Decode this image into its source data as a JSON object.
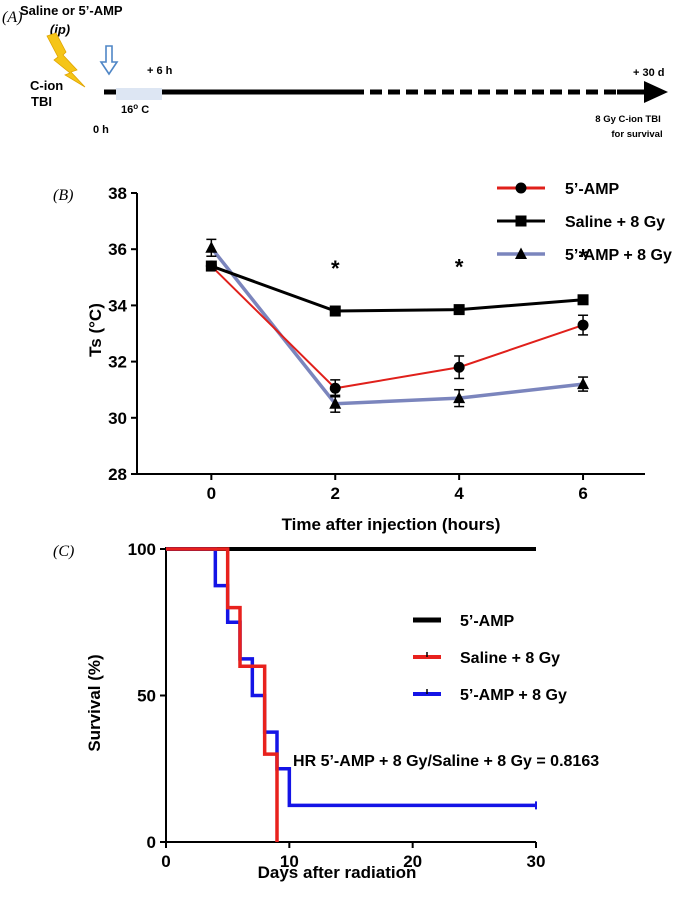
{
  "panel_a": {
    "panel_label": "(A)",
    "injection_label": "Saline or 5’-AMP",
    "injection_route": "(ip)",
    "irradiation_label_line1": "C-ion",
    "irradiation_label_line2": "TBI",
    "time_start": "0 h",
    "time_6h": "+ 6 h",
    "time_30d": "+ 30 d",
    "temperature_box": "16",
    "temperature_sup": "o",
    "temperature_unit": " C",
    "end_label_line1": "8 Gy C-ion TBI",
    "end_label_line2": "for survival",
    "colors": {
      "lightning": "#f5c518",
      "arrow_outline": "#4f86c6",
      "cold_box": "#dde6f3"
    }
  },
  "chart_data": [
    {
      "type": "line",
      "panel_label": "(B)",
      "xlabel": "Time after injection (hours)",
      "ylabel": "Ts (°C)",
      "xlim": [
        -1.2,
        7
      ],
      "ylim": [
        28,
        38
      ],
      "x_ticks": [
        0,
        2,
        4,
        6
      ],
      "y_ticks": [
        28,
        30,
        32,
        34,
        36,
        38
      ],
      "x": [
        0,
        2,
        4,
        6
      ],
      "series": [
        {
          "name": "5’-AMP",
          "marker": "circle",
          "color": "#e0201b",
          "values": [
            35.4,
            31.05,
            31.8,
            33.3
          ],
          "errors": [
            0.15,
            0.3,
            0.4,
            0.35
          ]
        },
        {
          "name": "Saline + 8 Gy",
          "marker": "square",
          "color": "#000000",
          "values": [
            35.4,
            33.8,
            33.85,
            34.2
          ],
          "errors": [
            0.1,
            0.12,
            0.12,
            0.12
          ]
        },
        {
          "name": "5’-AMP + 8 Gy",
          "marker": "triangle",
          "color": "#7b85bd",
          "values": [
            36.05,
            30.5,
            30.7,
            31.2
          ],
          "errors": [
            0.3,
            0.3,
            0.3,
            0.25
          ]
        }
      ],
      "annotations": [
        {
          "x": 2,
          "y": 35.05,
          "text": "*"
        },
        {
          "x": 4,
          "y": 35.1,
          "text": "*"
        },
        {
          "x": 6,
          "y": 35.45,
          "text": "*"
        }
      ],
      "legend_position": "top-right",
      "grid": false
    },
    {
      "type": "line",
      "panel_label": "(C)",
      "step": true,
      "xlabel": "Days after radiation",
      "ylabel": "Survival (%)",
      "xlim": [
        0,
        30
      ],
      "ylim": [
        0,
        100
      ],
      "x_ticks": [
        0,
        10,
        20,
        30
      ],
      "y_ticks": [
        0,
        50,
        100
      ],
      "series": [
        {
          "name": "5’-AMP",
          "color": "#000000",
          "points": [
            [
              0,
              100
            ],
            [
              30,
              100
            ]
          ]
        },
        {
          "name": "Saline + 8 Gy",
          "color": "#e8211d",
          "points": [
            [
              0,
              100
            ],
            [
              5,
              100
            ],
            [
              5,
              80
            ],
            [
              6,
              80
            ],
            [
              6,
              60
            ],
            [
              8,
              60
            ],
            [
              8,
              30
            ],
            [
              9,
              30
            ],
            [
              9,
              0
            ]
          ]
        },
        {
          "name": "5’-AMP + 8 Gy",
          "color": "#1414e6",
          "points": [
            [
              0,
              100
            ],
            [
              4,
              100
            ],
            [
              4,
              87.5
            ],
            [
              5,
              87.5
            ],
            [
              5,
              75
            ],
            [
              6,
              75
            ],
            [
              6,
              62.5
            ],
            [
              7,
              62.5
            ],
            [
              7,
              50
            ],
            [
              8,
              50
            ],
            [
              8,
              37.5
            ],
            [
              9,
              37.5
            ],
            [
              9,
              25
            ],
            [
              10,
              25
            ],
            [
              10,
              12.5
            ],
            [
              30,
              12.5
            ]
          ]
        }
      ],
      "annotations": [
        {
          "x": 10.3,
          "y": 26,
          "text": "HR 5’-AMP + 8 Gy/Saline + 8 Gy = 0.8163"
        }
      ],
      "legend_position": "right",
      "grid": false
    }
  ]
}
